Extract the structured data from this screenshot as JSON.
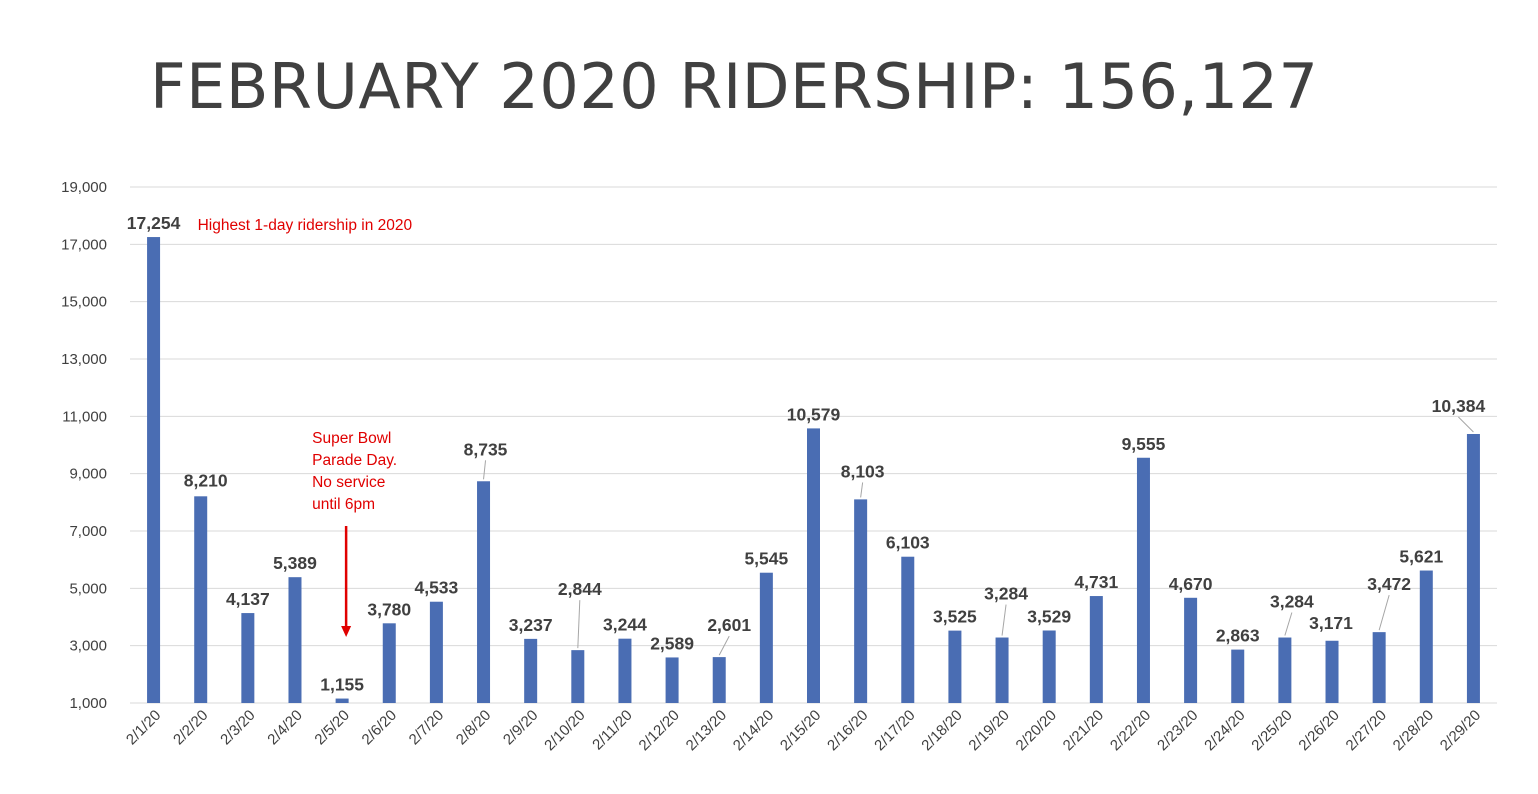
{
  "chart_data": {
    "type": "bar",
    "title": "FEBRUARY 2020 RIDERSHIP: 156,127",
    "xlabel": "",
    "ylabel": "",
    "ylim": [
      1000,
      19000
    ],
    "yticks": [
      1000,
      3000,
      5000,
      7000,
      9000,
      11000,
      13000,
      15000,
      17000,
      19000
    ],
    "ytick_labels": [
      "1,000",
      "3,000",
      "5,000",
      "7,000",
      "9,000",
      "11,000",
      "13,000",
      "15,000",
      "17,000",
      "19,000"
    ],
    "grid": true,
    "bar_color": "#4a6db3",
    "categories": [
      "2/1/20",
      "2/2/20",
      "2/3/20",
      "2/4/20",
      "2/5/20",
      "2/6/20",
      "2/7/20",
      "2/8/20",
      "2/9/20",
      "2/10/20",
      "2/11/20",
      "2/12/20",
      "2/13/20",
      "2/14/20",
      "2/15/20",
      "2/16/20",
      "2/17/20",
      "2/18/20",
      "2/19/20",
      "2/20/20",
      "2/21/20",
      "2/22/20",
      "2/23/20",
      "2/24/20",
      "2/25/20",
      "2/26/20",
      "2/27/20",
      "2/28/20",
      "2/29/20"
    ],
    "values": [
      17254,
      8210,
      4137,
      5389,
      1155,
      3780,
      4533,
      8735,
      3237,
      2844,
      3244,
      2589,
      2601,
      5545,
      10579,
      8103,
      6103,
      3525,
      3284,
      3529,
      4731,
      9555,
      4670,
      2863,
      3284,
      3171,
      3472,
      5621,
      10384
    ],
    "value_labels": [
      "17,254",
      "8,210",
      "4,137",
      "5,389",
      "1,155",
      "3,780",
      "4,533",
      "8,735",
      "3,237",
      "2,844",
      "3,244",
      "2,589",
      "2,601",
      "5,545",
      "10,579",
      "8,103",
      "6,103",
      "3,525",
      "3,284",
      "3,529",
      "4,731",
      "9,555",
      "4,670",
      "2,863",
      "3,284",
      "3,171",
      "3,472",
      "5,621",
      "10,384"
    ],
    "annotations": [
      {
        "category": "2/1/20",
        "color": "#e00000",
        "lines": [
          "Highest 1-day ridership in 2020"
        ]
      },
      {
        "category": "2/5/20",
        "color": "#e00000",
        "lines": [
          "Super Bowl",
          "Parade Day.",
          "No service",
          "until 6pm"
        ],
        "arrow": true
      }
    ]
  }
}
